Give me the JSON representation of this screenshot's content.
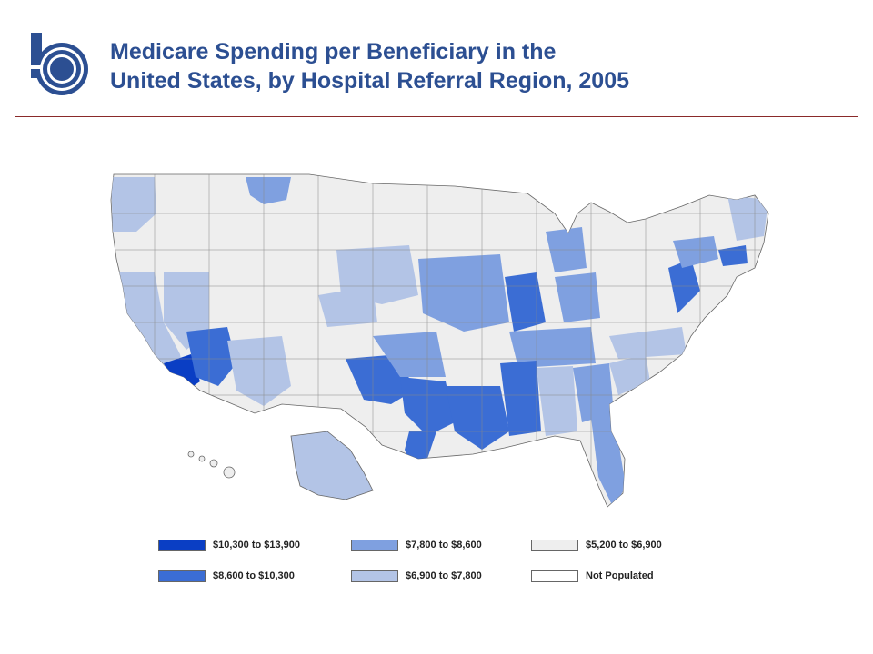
{
  "slide": {
    "title_line1": "Medicare Spending per Beneficiary in the",
    "title_line2": "United States, by Hospital Referral Region, 2005",
    "logo_icon": "dartmouth-atlas-logo-icon",
    "accent_color": "#2c4f92",
    "border_color": "#8a2a2a"
  },
  "map": {
    "subject": "hospital-referral-regions-usa",
    "fill_scale": [
      "#0a3ec4",
      "#3b6dd4",
      "#7fa0e0",
      "#b3c4e6",
      "#eeeeee",
      "#ffffff"
    ]
  },
  "legend": {
    "items": [
      {
        "label": "$10,300 to $13,900",
        "color": "#0a3ec4"
      },
      {
        "label": "$8,600 to $10,300",
        "color": "#3b6dd4"
      },
      {
        "label": "$7,800 to $8,600",
        "color": "#7fa0e0"
      },
      {
        "label": "$6,900 to $7,800",
        "color": "#b3c4e6"
      },
      {
        "label": "$5,200 to $6,900",
        "color": "#eeeeee"
      },
      {
        "label": "Not Populated",
        "color": "#ffffff"
      }
    ]
  }
}
